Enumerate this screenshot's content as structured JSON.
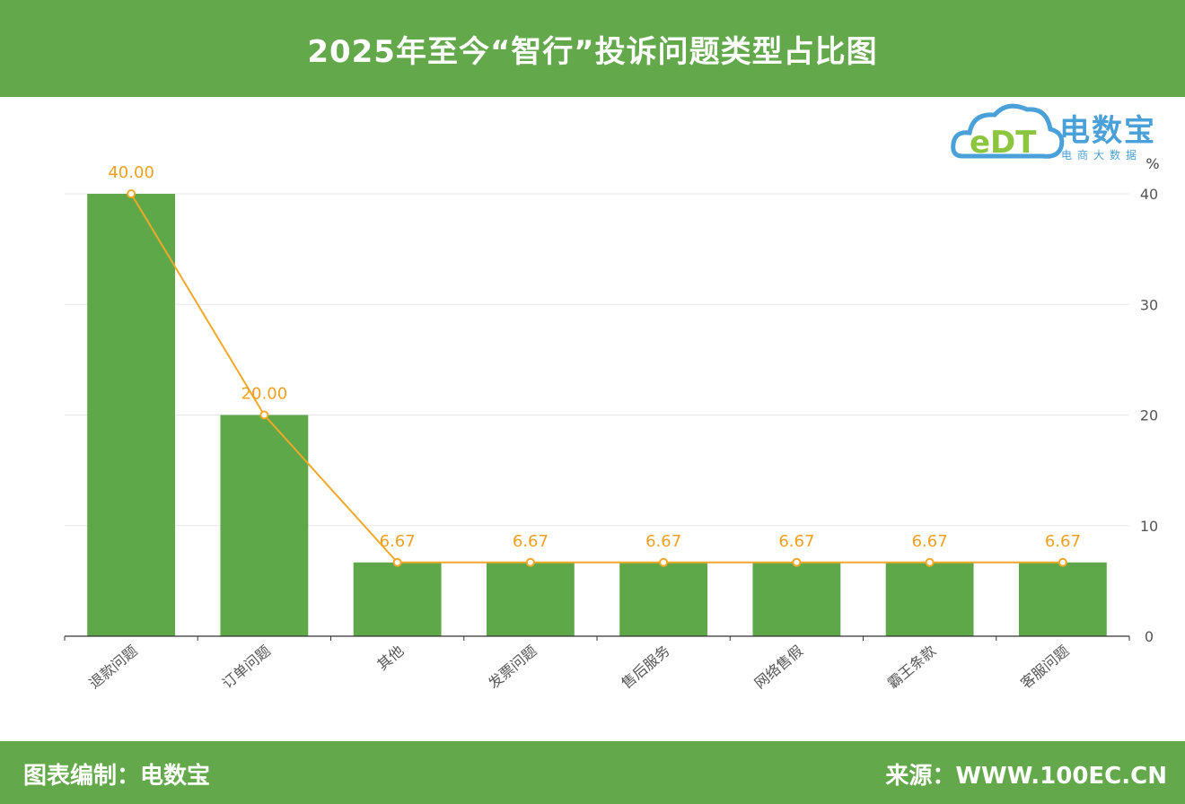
{
  "header": {
    "title": "2025年至今“智行”投诉问题类型占比图"
  },
  "footer": {
    "left_text": "图表编制：电数宝",
    "right_text": "来源：WWW.100EC.CN"
  },
  "logo": {
    "brand": "电数宝",
    "sub": "电商大数据",
    "mark": "eDT"
  },
  "colors": {
    "bar": "#5fa84a",
    "line": "#f0a828",
    "band": "#63a84b"
  },
  "chart_data": {
    "type": "bar",
    "categories": [
      "退款问题",
      "订单问题",
      "其他",
      "发票问题",
      "售后服务",
      "网络售假",
      "霸王条款",
      "客服问题"
    ],
    "values": [
      40.0,
      20.0,
      6.67,
      6.67,
      6.67,
      6.67,
      6.67,
      6.67
    ],
    "line_values": [
      40.0,
      20.0,
      6.67,
      6.67,
      6.67,
      6.67,
      6.67,
      6.67
    ],
    "data_labels": [
      "40.00",
      "20.00",
      "6.67",
      "6.67",
      "6.67",
      "6.67",
      "6.67",
      "6.67"
    ],
    "ylabel": "%",
    "ylim": [
      0,
      40
    ],
    "yticks": [
      0,
      10,
      20,
      30,
      40
    ],
    "y_axis_side": "right",
    "grid": true
  }
}
